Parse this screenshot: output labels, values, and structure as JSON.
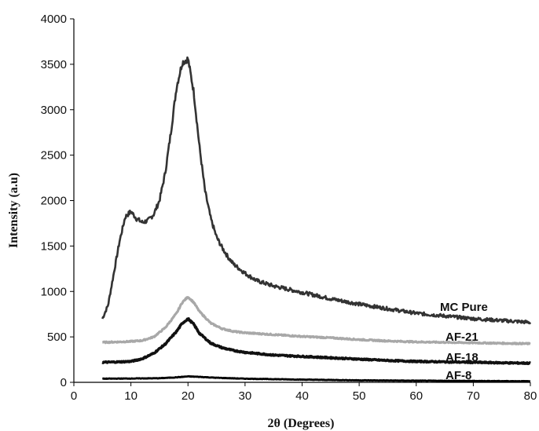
{
  "chart_data": {
    "type": "line",
    "title": "",
    "xlabel": "2θ (Degrees)",
    "ylabel": "Intensity (a.u)",
    "xlim": [
      0,
      80
    ],
    "ylim": [
      0,
      4000
    ],
    "xticks": [
      "0",
      "10",
      "20",
      "30",
      "40",
      "50",
      "60",
      "70",
      "80"
    ],
    "yticks": [
      "0",
      "500",
      "1000",
      "1500",
      "2000",
      "2500",
      "3000",
      "3500",
      "4000"
    ],
    "grid": false,
    "legend": "inline labels at right end of each curve",
    "series": [
      {
        "name": "MC Pure",
        "color": "#333333",
        "x": [
          5,
          6,
          7,
          8,
          9,
          10,
          11,
          12,
          13,
          14,
          15,
          16,
          17,
          18,
          19,
          20,
          21,
          22,
          23,
          24,
          25,
          26,
          27,
          28,
          30,
          32,
          35,
          40,
          45,
          50,
          55,
          60,
          65,
          70,
          75,
          80
        ],
        "y": [
          700,
          850,
          1200,
          1550,
          1820,
          1880,
          1800,
          1760,
          1780,
          1850,
          2000,
          2300,
          2750,
          3250,
          3520,
          3560,
          3200,
          2600,
          2100,
          1800,
          1600,
          1480,
          1380,
          1300,
          1200,
          1120,
          1060,
          990,
          920,
          860,
          810,
          760,
          730,
          700,
          680,
          660
        ]
      },
      {
        "name": "AF-21",
        "color": "#a8a8a8",
        "x": [
          5,
          8,
          10,
          12,
          14,
          16,
          18,
          19,
          20,
          21,
          22,
          24,
          26,
          28,
          30,
          35,
          40,
          45,
          50,
          55,
          60,
          65,
          70,
          75,
          80
        ],
        "y": [
          440,
          445,
          450,
          460,
          500,
          600,
          760,
          880,
          940,
          880,
          780,
          650,
          590,
          560,
          545,
          525,
          505,
          490,
          470,
          455,
          445,
          440,
          435,
          430,
          425
        ]
      },
      {
        "name": "AF-18",
        "color": "#111111",
        "x": [
          5,
          8,
          10,
          12,
          14,
          16,
          18,
          19,
          20,
          21,
          22,
          24,
          26,
          28,
          30,
          35,
          40,
          45,
          50,
          55,
          60,
          65,
          70,
          75,
          80
        ],
        "y": [
          220,
          225,
          230,
          260,
          320,
          420,
          560,
          650,
          700,
          640,
          540,
          430,
          380,
          350,
          330,
          300,
          285,
          270,
          255,
          240,
          230,
          225,
          220,
          215,
          210
        ]
      },
      {
        "name": "AF-8",
        "color": "#000000",
        "x": [
          5,
          10,
          15,
          18,
          20,
          22,
          25,
          30,
          40,
          50,
          60,
          70,
          80
        ],
        "y": [
          40,
          42,
          45,
          55,
          65,
          60,
          50,
          40,
          30,
          22,
          18,
          15,
          12
        ]
      }
    ]
  }
}
